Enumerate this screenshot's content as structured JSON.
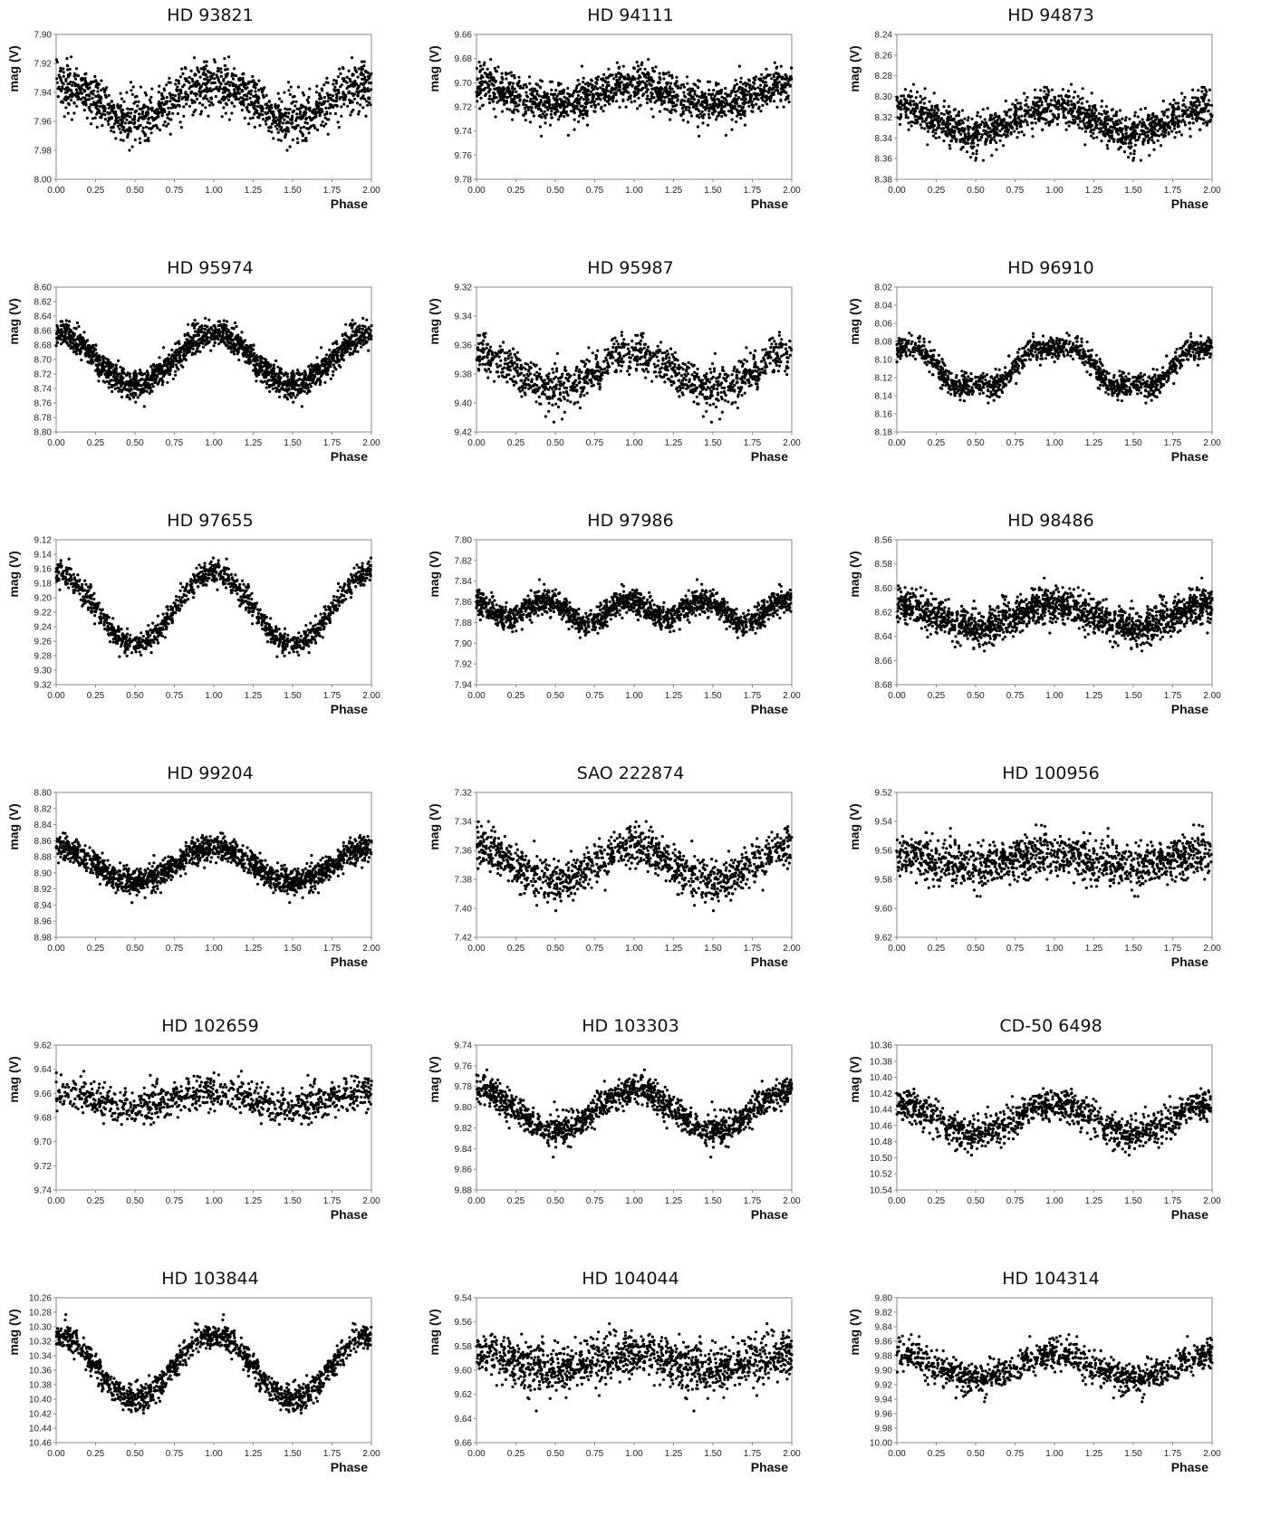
{
  "chart_data": [
    {
      "type": "scatter",
      "title": "HD 93821",
      "ylabel": "mag (V)",
      "xlabel": "Phase",
      "xlim": [
        0,
        2
      ],
      "ylim": [
        7.9,
        8.0
      ],
      "yticks": [
        "7.90",
        "7.92",
        "7.94",
        "7.96",
        "7.98",
        "8.00"
      ],
      "xticks": [
        "0.00",
        "0.25",
        "0.50",
        "0.75",
        "1.00",
        "1.25",
        "1.50",
        "1.75",
        "2.00"
      ],
      "y_reversed": true,
      "model": {
        "points": 700,
        "mean": 7.946,
        "amp": 0.012,
        "noise": 0.011,
        "shape": "sine"
      }
    },
    {
      "type": "scatter",
      "title": "HD 94111",
      "ylabel": "mag (V)",
      "xlabel": "Phase",
      "xlim": [
        0,
        2
      ],
      "ylim": [
        9.66,
        9.78
      ],
      "yticks": [
        "9.66",
        "9.68",
        "9.70",
        "9.72",
        "9.74",
        "9.76",
        "9.78"
      ],
      "xticks": [
        "0.00",
        "0.25",
        "0.50",
        "0.75",
        "1.00",
        "1.25",
        "1.50",
        "1.75",
        "2.00"
      ],
      "y_reversed": true,
      "model": {
        "points": 750,
        "mean": 9.71,
        "amp": 0.008,
        "noise": 0.011,
        "shape": "sine"
      }
    },
    {
      "type": "scatter",
      "title": "HD 94873",
      "ylabel": "mag (V)",
      "xlabel": "Phase",
      "xlim": [
        0,
        2
      ],
      "ylim": [
        8.24,
        8.38
      ],
      "yticks": [
        "8.24",
        "8.26",
        "8.28",
        "8.30",
        "8.32",
        "8.34",
        "8.36",
        "8.38"
      ],
      "xticks": [
        "0.00",
        "0.25",
        "0.50",
        "0.75",
        "1.00",
        "1.25",
        "1.50",
        "1.75",
        "2.00"
      ],
      "y_reversed": true,
      "model": {
        "points": 700,
        "mean": 8.322,
        "amp": 0.012,
        "noise": 0.013,
        "shape": "sine"
      }
    },
    {
      "type": "scatter",
      "title": "HD 95974",
      "ylabel": "mag (V)",
      "xlabel": "Phase",
      "xlim": [
        0,
        2
      ],
      "ylim": [
        8.6,
        8.8
      ],
      "yticks": [
        "8.60",
        "8.62",
        "8.64",
        "8.66",
        "8.68",
        "8.70",
        "8.72",
        "8.74",
        "8.76",
        "8.78",
        "8.80"
      ],
      "xticks": [
        "0.00",
        "0.25",
        "0.50",
        "0.75",
        "1.00",
        "1.25",
        "1.50",
        "1.75",
        "2.00"
      ],
      "y_reversed": true,
      "model": {
        "points": 900,
        "mean": 8.7,
        "amp": 0.035,
        "noise": 0.013,
        "shape": "sine"
      }
    },
    {
      "type": "scatter",
      "title": "HD 95987",
      "ylabel": "mag (V)",
      "xlabel": "Phase",
      "xlim": [
        0,
        2
      ],
      "ylim": [
        9.32,
        9.42
      ],
      "yticks": [
        "9.32",
        "9.34",
        "9.36",
        "9.38",
        "9.40",
        "9.42"
      ],
      "xticks": [
        "0.00",
        "0.25",
        "0.50",
        "0.75",
        "1.00",
        "1.25",
        "1.50",
        "1.75",
        "2.00"
      ],
      "y_reversed": true,
      "model": {
        "points": 550,
        "mean": 9.378,
        "amp": 0.012,
        "noise": 0.01,
        "shape": "sine"
      }
    },
    {
      "type": "scatter",
      "title": "HD 96910",
      "ylabel": "mag (V)",
      "xlabel": "Phase",
      "xlim": [
        0,
        2
      ],
      "ylim": [
        8.02,
        8.18
      ],
      "yticks": [
        "8.02",
        "8.04",
        "8.06",
        "8.08",
        "8.10",
        "8.12",
        "8.14",
        "8.16",
        "8.18"
      ],
      "xticks": [
        "0.00",
        "0.25",
        "0.50",
        "0.75",
        "1.00",
        "1.25",
        "1.50",
        "1.75",
        "2.00"
      ],
      "y_reversed": true,
      "model": {
        "points": 650,
        "mean": 8.108,
        "amp": 0.02,
        "noise": 0.009,
        "shape": "flat"
      }
    },
    {
      "type": "scatter",
      "title": "HD 97655",
      "ylabel": "mag (V)",
      "xlabel": "Phase",
      "xlim": [
        0,
        2
      ],
      "ylim": [
        9.12,
        9.32
      ],
      "yticks": [
        "9.12",
        "9.14",
        "9.16",
        "9.18",
        "9.20",
        "9.22",
        "9.24",
        "9.26",
        "9.28",
        "9.30",
        "9.32"
      ],
      "xticks": [
        "0.00",
        "0.25",
        "0.50",
        "0.75",
        "1.00",
        "1.25",
        "1.50",
        "1.75",
        "2.00"
      ],
      "y_reversed": true,
      "model": {
        "points": 600,
        "mean": 9.215,
        "amp": 0.05,
        "noise": 0.011,
        "shape": "sine"
      }
    },
    {
      "type": "scatter",
      "title": "HD 97986",
      "ylabel": "mag (V)",
      "xlabel": "Phase",
      "xlim": [
        0,
        2
      ],
      "ylim": [
        7.8,
        7.94
      ],
      "yticks": [
        "7.80",
        "7.82",
        "7.84",
        "7.86",
        "7.88",
        "7.90",
        "7.92",
        "7.94"
      ],
      "xticks": [
        "0.00",
        "0.25",
        "0.50",
        "0.75",
        "1.00",
        "1.25",
        "1.50",
        "1.75",
        "2.00"
      ],
      "y_reversed": true,
      "model": {
        "points": 800,
        "mean": 7.868,
        "amp": 0.012,
        "noise": 0.008,
        "shape": "double"
      }
    },
    {
      "type": "scatter",
      "title": "HD 98486",
      "ylabel": "mag (V)",
      "xlabel": "Phase",
      "xlim": [
        0,
        2
      ],
      "ylim": [
        8.56,
        8.68
      ],
      "yticks": [
        "8.56",
        "8.58",
        "8.60",
        "8.62",
        "8.64",
        "8.66",
        "8.68"
      ],
      "xticks": [
        "0.00",
        "0.25",
        "0.50",
        "0.75",
        "1.00",
        "1.25",
        "1.50",
        "1.75",
        "2.00"
      ],
      "y_reversed": true,
      "model": {
        "points": 850,
        "mean": 8.623,
        "amp": 0.01,
        "noise": 0.01,
        "shape": "sine"
      }
    },
    {
      "type": "scatter",
      "title": "HD 99204",
      "ylabel": "mag (V)",
      "xlabel": "Phase",
      "xlim": [
        0,
        2
      ],
      "ylim": [
        8.8,
        8.98
      ],
      "yticks": [
        "8.80",
        "8.82",
        "8.84",
        "8.86",
        "8.88",
        "8.90",
        "8.92",
        "8.94",
        "8.96",
        "8.98"
      ],
      "xticks": [
        "0.00",
        "0.25",
        "0.50",
        "0.75",
        "1.00",
        "1.25",
        "1.50",
        "1.75",
        "2.00"
      ],
      "y_reversed": true,
      "model": {
        "points": 850,
        "mean": 8.89,
        "amp": 0.022,
        "noise": 0.011,
        "shape": "sine"
      }
    },
    {
      "type": "scatter",
      "title": "SAO 222874",
      "ylabel": "mag (V)",
      "xlabel": "Phase",
      "xlim": [
        0,
        2
      ],
      "ylim": [
        7.32,
        7.42
      ],
      "yticks": [
        "7.32",
        "7.34",
        "7.36",
        "7.38",
        "7.40",
        "7.42"
      ],
      "xticks": [
        "0.00",
        "0.25",
        "0.50",
        "0.75",
        "1.00",
        "1.25",
        "1.50",
        "1.75",
        "2.00"
      ],
      "y_reversed": true,
      "model": {
        "points": 600,
        "mean": 7.37,
        "amp": 0.013,
        "noise": 0.009,
        "shape": "sine"
      }
    },
    {
      "type": "scatter",
      "title": "HD 100956",
      "ylabel": "mag (V)",
      "xlabel": "Phase",
      "xlim": [
        0,
        2
      ],
      "ylim": [
        9.52,
        9.62
      ],
      "yticks": [
        "9.52",
        "9.54",
        "9.56",
        "9.58",
        "9.60",
        "9.62"
      ],
      "xticks": [
        "0.00",
        "0.25",
        "0.50",
        "0.75",
        "1.00",
        "1.25",
        "1.50",
        "1.75",
        "2.00"
      ],
      "y_reversed": true,
      "model": {
        "points": 650,
        "mean": 9.566,
        "amp": 0.004,
        "noise": 0.01,
        "shape": "sine"
      }
    },
    {
      "type": "scatter",
      "title": "HD 102659",
      "ylabel": "mag (V)",
      "xlabel": "Phase",
      "xlim": [
        0,
        2
      ],
      "ylim": [
        9.62,
        9.74
      ],
      "yticks": [
        "9.62",
        "9.64",
        "9.66",
        "9.68",
        "9.70",
        "9.72",
        "9.74"
      ],
      "xticks": [
        "0.00",
        "0.25",
        "0.50",
        "0.75",
        "1.00",
        "1.25",
        "1.50",
        "1.75",
        "2.00"
      ],
      "y_reversed": true,
      "model": {
        "points": 450,
        "mean": 9.665,
        "amp": 0.006,
        "noise": 0.01,
        "shape": "sine"
      }
    },
    {
      "type": "scatter",
      "title": "HD 103303",
      "ylabel": "mag (V)",
      "xlabel": "Phase",
      "xlim": [
        0,
        2
      ],
      "ylim": [
        9.74,
        9.88
      ],
      "yticks": [
        "9.74",
        "9.76",
        "9.78",
        "9.80",
        "9.82",
        "9.84",
        "9.86",
        "9.88"
      ],
      "xticks": [
        "0.00",
        "0.25",
        "0.50",
        "0.75",
        "1.00",
        "1.25",
        "1.50",
        "1.75",
        "2.00"
      ],
      "y_reversed": true,
      "model": {
        "points": 700,
        "mean": 9.803,
        "amp": 0.02,
        "noise": 0.01,
        "shape": "sine"
      }
    },
    {
      "type": "scatter",
      "title": "CD-50 6498",
      "ylabel": "mag (V)",
      "xlabel": "Phase",
      "xlim": [
        0,
        2
      ],
      "ylim": [
        10.36,
        10.54
      ],
      "yticks": [
        "10.36",
        "10.38",
        "10.40",
        "10.42",
        "10.44",
        "10.46",
        "10.48",
        "10.50",
        "10.52",
        "10.54"
      ],
      "xticks": [
        "0.00",
        "0.25",
        "0.50",
        "0.75",
        "1.00",
        "1.25",
        "1.50",
        "1.75",
        "2.00"
      ],
      "y_reversed": true,
      "model": {
        "points": 600,
        "mean": 10.452,
        "amp": 0.018,
        "noise": 0.014,
        "shape": "sine"
      }
    },
    {
      "type": "scatter",
      "title": "HD 103844",
      "ylabel": "mag (V)",
      "xlabel": "Phase",
      "xlim": [
        0,
        2
      ],
      "ylim": [
        10.26,
        10.46
      ],
      "yticks": [
        "10.26",
        "10.28",
        "10.30",
        "10.32",
        "10.34",
        "10.36",
        "10.38",
        "10.40",
        "10.42",
        "10.44",
        "10.46"
      ],
      "xticks": [
        "0.00",
        "0.25",
        "0.50",
        "0.75",
        "1.00",
        "1.25",
        "1.50",
        "1.75",
        "2.00"
      ],
      "y_reversed": true,
      "model": {
        "points": 650,
        "mean": 10.355,
        "amp": 0.045,
        "noise": 0.012,
        "shape": "sine"
      }
    },
    {
      "type": "scatter",
      "title": "HD 104044",
      "ylabel": "mag (V)",
      "xlabel": "Phase",
      "xlim": [
        0,
        2
      ],
      "ylim": [
        9.54,
        9.66
      ],
      "yticks": [
        "9.54",
        "9.56",
        "9.58",
        "9.60",
        "9.62",
        "9.64",
        "9.66"
      ],
      "xticks": [
        "0.00",
        "0.25",
        "0.50",
        "0.75",
        "1.00",
        "1.25",
        "1.50",
        "1.75",
        "2.00"
      ],
      "y_reversed": true,
      "model": {
        "points": 650,
        "mean": 9.593,
        "amp": 0.007,
        "noise": 0.013,
        "shape": "sine"
      }
    },
    {
      "type": "scatter",
      "title": "HD 104314",
      "ylabel": "mag (V)",
      "xlabel": "Phase",
      "xlim": [
        0,
        2
      ],
      "ylim": [
        9.8,
        10.0
      ],
      "yticks": [
        "9.80",
        "9.82",
        "9.84",
        "9.86",
        "9.88",
        "9.90",
        "9.92",
        "9.94",
        "9.96",
        "9.98",
        "10.00"
      ],
      "xticks": [
        "0.00",
        "0.25",
        "0.50",
        "0.75",
        "1.00",
        "1.25",
        "1.50",
        "1.75",
        "2.00"
      ],
      "y_reversed": true,
      "model": {
        "points": 550,
        "mean": 9.895,
        "amp": 0.018,
        "noise": 0.014,
        "shape": "sine"
      }
    }
  ]
}
